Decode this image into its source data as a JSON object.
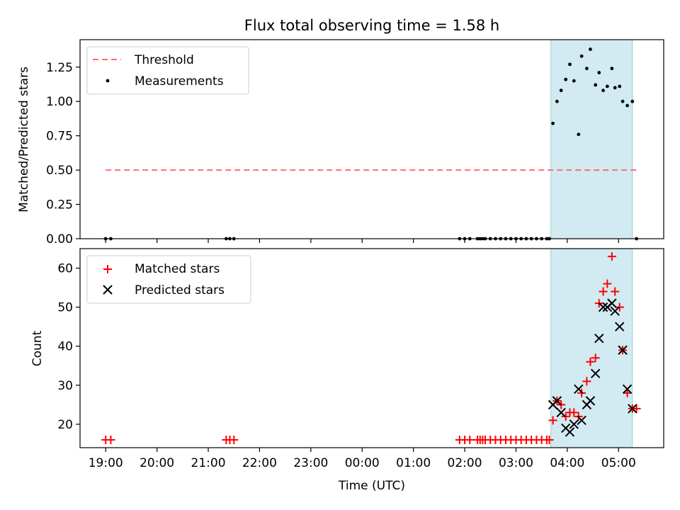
{
  "figure": {
    "title": "Flux total observing time = 1.58 h",
    "xlabel": "Time (UTC)",
    "x_tick_labels": [
      "19:00",
      "20:00",
      "21:00",
      "22:00",
      "23:00",
      "00:00",
      "01:00",
      "02:00",
      "03:00",
      "04:00",
      "05:00"
    ]
  },
  "chart_data": [
    {
      "type": "scatter",
      "title": "Flux total observing time = 1.58 h",
      "ylabel": "Matched/Predicted stars",
      "xlim_hours": [
        -0.5,
        10.88
      ],
      "ylim": [
        0,
        1.45
      ],
      "y_ticks": [
        "0.00",
        "0.25",
        "0.50",
        "0.75",
        "1.00",
        "1.25"
      ],
      "y_tick_values": [
        0,
        0.25,
        0.5,
        0.75,
        1.0,
        1.25
      ],
      "legend_position": "top-left",
      "observing_window_hours": [
        8.68,
        10.27
      ],
      "shade_color": "#add8e6",
      "threshold": {
        "name": "Threshold",
        "value": 0.5,
        "x_range_hours": [
          0.0,
          10.37
        ],
        "color": "#ff6b6b",
        "style": "dashed"
      },
      "series": [
        {
          "name": "Measurements",
          "color": "#000000",
          "marker": "dot",
          "points": [
            [
              0.0,
              0
            ],
            [
              0.1,
              0
            ],
            [
              2.35,
              0
            ],
            [
              2.42,
              0
            ],
            [
              2.5,
              0
            ],
            [
              6.9,
              0
            ],
            [
              7.0,
              0
            ],
            [
              7.1,
              0
            ],
            [
              7.25,
              0
            ],
            [
              7.3,
              0
            ],
            [
              7.35,
              0
            ],
            [
              7.4,
              0
            ],
            [
              7.5,
              0
            ],
            [
              7.6,
              0
            ],
            [
              7.7,
              0
            ],
            [
              7.8,
              0
            ],
            [
              7.9,
              0
            ],
            [
              8.0,
              0
            ],
            [
              8.1,
              0
            ],
            [
              8.2,
              0
            ],
            [
              8.3,
              0
            ],
            [
              8.4,
              0
            ],
            [
              8.5,
              0
            ],
            [
              8.6,
              0
            ],
            [
              8.65,
              0
            ],
            [
              8.72,
              0.84
            ],
            [
              8.8,
              1.0
            ],
            [
              8.88,
              1.08
            ],
            [
              8.97,
              1.16
            ],
            [
              9.05,
              1.27
            ],
            [
              9.13,
              1.15
            ],
            [
              9.22,
              0.76
            ],
            [
              9.28,
              1.33
            ],
            [
              9.38,
              1.24
            ],
            [
              9.45,
              1.38
            ],
            [
              9.55,
              1.12
            ],
            [
              9.62,
              1.21
            ],
            [
              9.7,
              1.08
            ],
            [
              9.78,
              1.11
            ],
            [
              9.87,
              1.24
            ],
            [
              9.93,
              1.1
            ],
            [
              10.02,
              1.11
            ],
            [
              10.08,
              1.0
            ],
            [
              10.17,
              0.97
            ],
            [
              10.27,
              1.0
            ],
            [
              10.35,
              0
            ]
          ]
        }
      ]
    },
    {
      "type": "scatter",
      "ylabel": "Count",
      "xlabel": "Time (UTC)",
      "xlim_hours": [
        -0.5,
        10.88
      ],
      "ylim": [
        14,
        65
      ],
      "y_ticks": [
        "20",
        "30",
        "40",
        "50",
        "60"
      ],
      "y_tick_values": [
        20,
        30,
        40,
        50,
        60
      ],
      "legend_position": "top-left",
      "observing_window_hours": [
        8.68,
        10.27
      ],
      "x_ticks": [
        "19:00",
        "20:00",
        "21:00",
        "22:00",
        "23:00",
        "00:00",
        "01:00",
        "02:00",
        "03:00",
        "04:00",
        "05:00"
      ],
      "x_tick_values": [
        0,
        1,
        2,
        3,
        4,
        5,
        6,
        7,
        8,
        9,
        10
      ],
      "series": [
        {
          "name": "Matched stars",
          "color": "#ff0000",
          "marker": "plus",
          "points": [
            [
              0.0,
              16
            ],
            [
              0.1,
              16
            ],
            [
              2.35,
              16
            ],
            [
              2.42,
              16
            ],
            [
              2.5,
              16
            ],
            [
              6.9,
              16
            ],
            [
              7.0,
              16
            ],
            [
              7.1,
              16
            ],
            [
              7.25,
              16
            ],
            [
              7.3,
              16
            ],
            [
              7.35,
              16
            ],
            [
              7.4,
              16
            ],
            [
              7.5,
              16
            ],
            [
              7.6,
              16
            ],
            [
              7.7,
              16
            ],
            [
              7.8,
              16
            ],
            [
              7.9,
              16
            ],
            [
              8.0,
              16
            ],
            [
              8.1,
              16
            ],
            [
              8.2,
              16
            ],
            [
              8.3,
              16
            ],
            [
              8.4,
              16
            ],
            [
              8.5,
              16
            ],
            [
              8.6,
              16
            ],
            [
              8.65,
              16
            ],
            [
              8.72,
              21
            ],
            [
              8.8,
              26
            ],
            [
              8.88,
              25
            ],
            [
              8.97,
              22
            ],
            [
              9.05,
              23
            ],
            [
              9.13,
              23
            ],
            [
              9.22,
              22
            ],
            [
              9.28,
              28
            ],
            [
              9.38,
              31
            ],
            [
              9.45,
              36
            ],
            [
              9.55,
              37
            ],
            [
              9.62,
              51
            ],
            [
              9.7,
              54
            ],
            [
              9.78,
              56
            ],
            [
              9.87,
              63
            ],
            [
              9.93,
              54
            ],
            [
              10.02,
              50
            ],
            [
              10.08,
              39
            ],
            [
              10.17,
              28
            ],
            [
              10.27,
              24
            ],
            [
              10.35,
              24
            ]
          ]
        },
        {
          "name": "Predicted stars",
          "color": "#000000",
          "marker": "x",
          "points": [
            [
              8.72,
              25
            ],
            [
              8.8,
              26
            ],
            [
              8.88,
              23
            ],
            [
              8.97,
              19
            ],
            [
              9.05,
              18
            ],
            [
              9.13,
              20
            ],
            [
              9.22,
              29
            ],
            [
              9.28,
              21
            ],
            [
              9.38,
              25
            ],
            [
              9.45,
              26
            ],
            [
              9.55,
              33
            ],
            [
              9.62,
              42
            ],
            [
              9.7,
              50
            ],
            [
              9.78,
              50
            ],
            [
              9.87,
              51
            ],
            [
              9.93,
              49
            ],
            [
              10.02,
              45
            ],
            [
              10.08,
              39
            ],
            [
              10.17,
              29
            ],
            [
              10.27,
              24
            ]
          ]
        }
      ]
    }
  ]
}
